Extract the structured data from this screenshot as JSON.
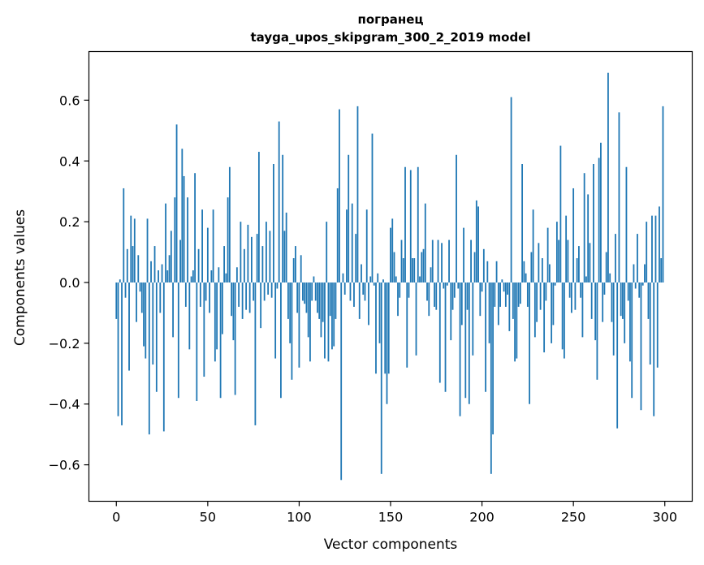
{
  "chart_data": {
    "type": "bar",
    "title": "погранец",
    "subtitle": "tayga_upos_skipgram_300_2_2019 model",
    "xlabel": "Vector components",
    "ylabel": "Components values",
    "xlim": [
      -15,
      315
    ],
    "ylim": [
      -0.72,
      0.76
    ],
    "xticks": [
      0,
      50,
      100,
      150,
      200,
      250,
      300
    ],
    "xtick_labels": [
      "0",
      "50",
      "100",
      "150",
      "200",
      "250",
      "300"
    ],
    "yticks": [
      -0.6,
      -0.4,
      -0.2,
      0.0,
      0.2,
      0.4,
      0.6
    ],
    "ytick_labels": [
      "−0.6",
      "−0.4",
      "−0.2",
      "0.0",
      "0.2",
      "0.4",
      "0.6"
    ],
    "grid": false,
    "bar_color": "#1f77b4",
    "x": "0..299 (component index)",
    "values": [
      -0.12,
      -0.44,
      0.01,
      -0.47,
      0.31,
      -0.05,
      0.11,
      -0.29,
      0.22,
      0.12,
      0.21,
      -0.13,
      0.09,
      -0.03,
      -0.1,
      -0.21,
      -0.25,
      0.21,
      -0.5,
      0.07,
      -0.27,
      0.12,
      -0.36,
      0.04,
      -0.1,
      0.06,
      -0.49,
      0.26,
      0.04,
      0.09,
      0.17,
      -0.18,
      0.28,
      0.52,
      -0.38,
      0.14,
      0.44,
      0.35,
      -0.08,
      0.28,
      -0.22,
      0.02,
      0.04,
      0.36,
      -0.39,
      0.11,
      -0.08,
      0.24,
      -0.31,
      -0.06,
      0.18,
      -0.1,
      0.04,
      0.24,
      -0.26,
      -0.22,
      0.05,
      -0.38,
      -0.17,
      0.12,
      0.03,
      0.28,
      0.38,
      -0.11,
      -0.19,
      -0.37,
      0.05,
      -0.08,
      0.2,
      -0.12,
      0.11,
      -0.09,
      0.19,
      -0.1,
      0.15,
      -0.06,
      -0.47,
      0.16,
      0.43,
      -0.15,
      0.12,
      -0.06,
      0.2,
      -0.04,
      0.17,
      -0.05,
      0.39,
      -0.25,
      -0.02,
      0.53,
      -0.38,
      0.42,
      0.17,
      0.23,
      -0.12,
      -0.2,
      -0.32,
      0.08,
      0.12,
      -0.1,
      -0.28,
      0.09,
      -0.06,
      -0.07,
      -0.1,
      -0.18,
      -0.26,
      -0.06,
      0.02,
      -0.06,
      -0.1,
      -0.12,
      -0.18,
      -0.13,
      -0.25,
      0.2,
      -0.26,
      -0.11,
      -0.22,
      -0.21,
      -0.12,
      0.31,
      0.57,
      -0.65,
      0.03,
      -0.04,
      0.24,
      0.42,
      -0.06,
      0.26,
      -0.08,
      0.16,
      0.58,
      -0.12,
      0.06,
      -0.04,
      -0.06,
      0.24,
      -0.14,
      0.02,
      0.49,
      -0.01,
      -0.3,
      0.03,
      -0.2,
      -0.63,
      0.01,
      -0.3,
      -0.4,
      -0.3,
      0.18,
      0.21,
      0.1,
      0.02,
      -0.11,
      -0.05,
      0.14,
      0.08,
      0.38,
      -0.28,
      -0.05,
      0.37,
      0.08,
      0.08,
      -0.24,
      0.38,
      0.02,
      0.1,
      0.11,
      0.26,
      -0.06,
      -0.11,
      0.05,
      0.14,
      -0.08,
      -0.09,
      0.14,
      -0.33,
      0.13,
      -0.02,
      -0.36,
      -0.01,
      0.14,
      -0.19,
      -0.09,
      -0.05,
      0.42,
      -0.02,
      -0.44,
      -0.14,
      0.18,
      -0.38,
      -0.09,
      -0.4,
      0.14,
      -0.24,
      0.1,
      0.27,
      0.25,
      -0.11,
      -0.03,
      0.11,
      -0.36,
      0.07,
      -0.2,
      -0.63,
      -0.5,
      -0.08,
      0.07,
      -0.14,
      -0.08,
      0.01,
      -0.03,
      -0.08,
      -0.04,
      -0.16,
      0.61,
      -0.12,
      -0.26,
      -0.25,
      -0.08,
      -0.07,
      0.39,
      0.07,
      0.03,
      -0.08,
      -0.4,
      0.1,
      0.24,
      -0.18,
      -0.13,
      0.13,
      -0.09,
      0.08,
      -0.23,
      -0.06,
      0.18,
      0.06,
      -0.2,
      -0.14,
      -0.01,
      0.2,
      0.14,
      0.45,
      -0.22,
      -0.25,
      0.22,
      0.14,
      -0.05,
      -0.1,
      0.31,
      -0.09,
      0.08,
      0.12,
      -0.05,
      -0.18,
      0.36,
      0.02,
      0.29,
      0.13,
      -0.12,
      0.39,
      -0.19,
      -0.32,
      0.41,
      0.46,
      -0.13,
      -0.04,
      0.1,
      0.69,
      0.03,
      -0.13,
      -0.24,
      0.16,
      -0.48,
      0.56,
      -0.11,
      -0.12,
      -0.2,
      0.38,
      -0.06,
      -0.26,
      -0.38,
      0.06,
      -0.02,
      0.16,
      -0.05,
      -0.42,
      -0.01,
      0.06,
      0.2,
      -0.12,
      -0.27,
      0.22,
      -0.44,
      0.22,
      -0.28,
      0.25,
      0.08,
      0.58
    ]
  }
}
